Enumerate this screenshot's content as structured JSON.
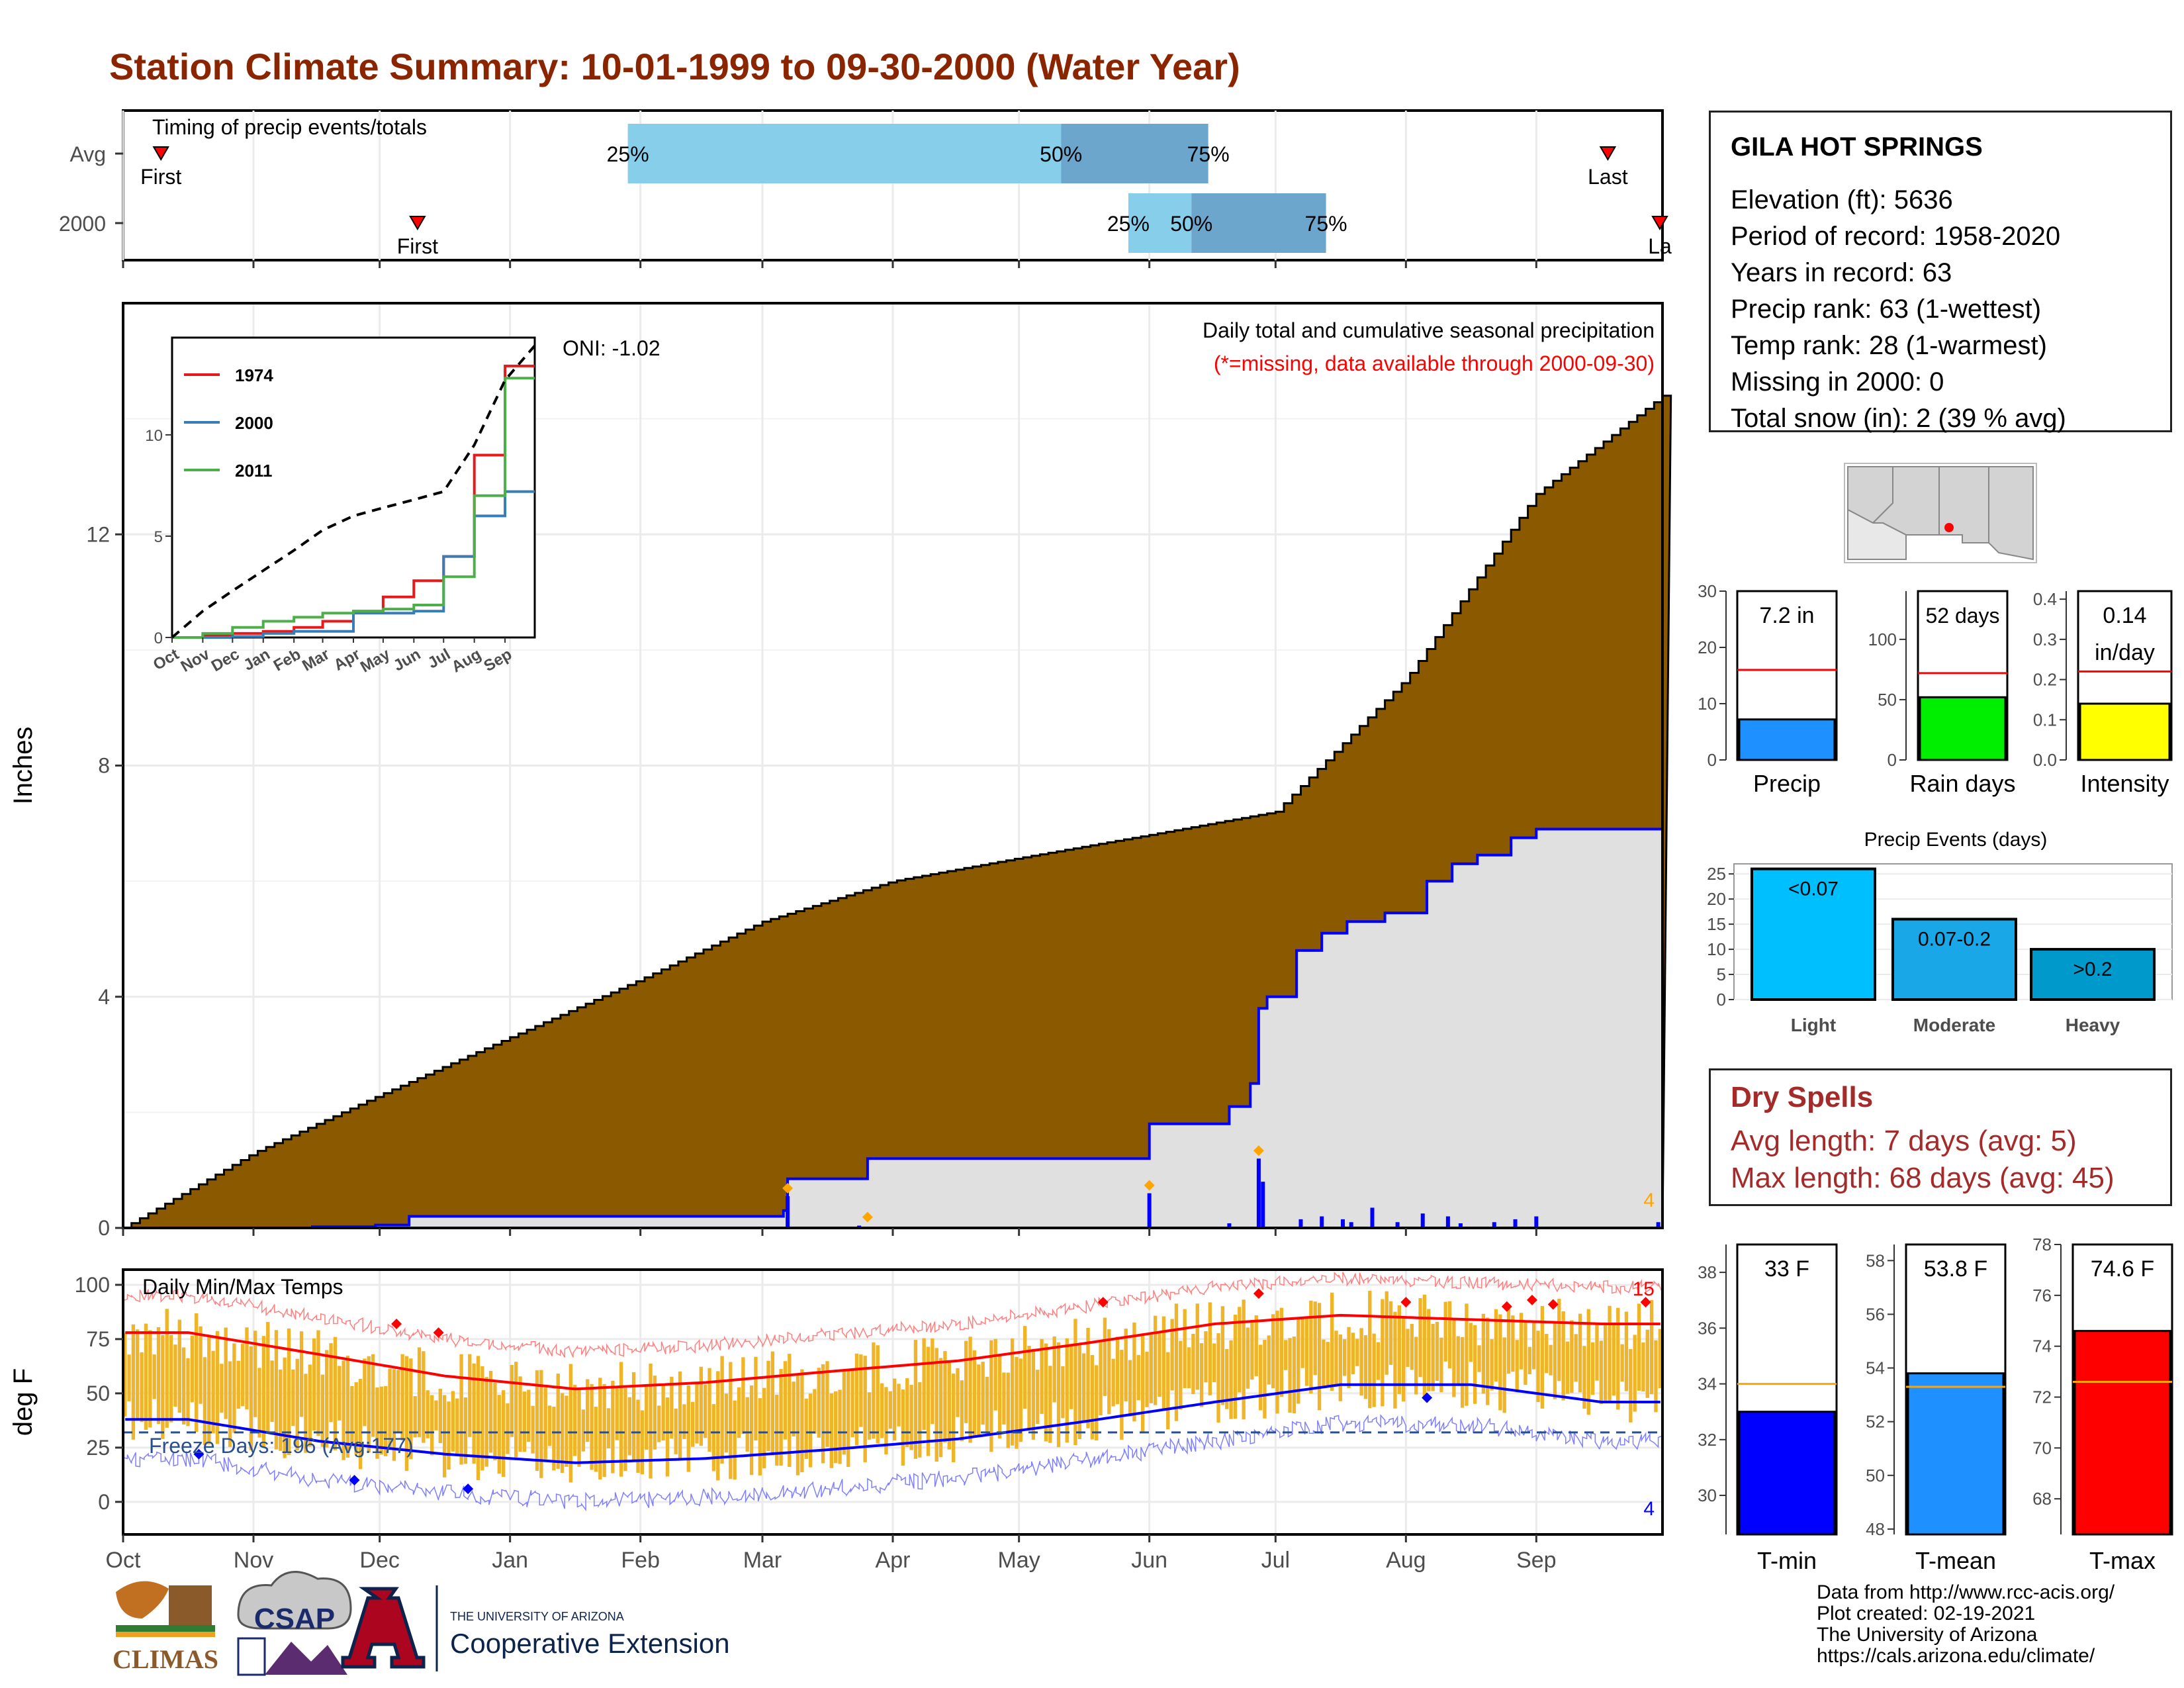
{
  "title": "Station Climate Summary: 10-01-1999 to 09-30-2000 (Water Year)",
  "colors": {
    "title": "#8B2500",
    "cum_avg": "#8B5A00",
    "cum_year": "#0000FF",
    "panel_bg": "#E0E0E0",
    "iqr_light": "#87CEEB",
    "iqr_dark": "#6CA6CD",
    "temp_bar": "#F0B429",
    "tmax_line": "#FF0000",
    "tmin_line": "#0000FF",
    "dry": "#A52A2A"
  },
  "timing": {
    "label": "Timing of precip events/totals",
    "rows": [
      "Avg",
      "2000"
    ],
    "avg": {
      "first_label": "First",
      "last_label": "Last",
      "p25": "25%",
      "p50": "50%",
      "p75": "75%",
      "first_day": 9,
      "p25_day": 120,
      "p50_day": 223,
      "p75_day": 258,
      "last_day": 353
    },
    "year": {
      "first_label": "First",
      "last_label": "La",
      "p25": "25%",
      "p50": "50%",
      "p75": "75%",
      "first_day": 70,
      "p25_day": 239,
      "p50_day": 254,
      "p75_day": 286,
      "last_day": 366
    }
  },
  "precip_panel": {
    "title": "Daily total and cumulative seasonal precipitation",
    "subtitle": "(*=missing, data available through 2000-09-30)",
    "ylabel": "Inches",
    "y_ticks": [
      0,
      4,
      8,
      12
    ],
    "oni": "ONI: -1.02",
    "corner_count": "4",
    "x_months": [
      "Oct",
      "Nov",
      "Dec",
      "Jan",
      "Feb",
      "Mar",
      "Apr",
      "May",
      "Jun",
      "Jul",
      "Aug",
      "Sep"
    ]
  },
  "inset": {
    "legend": [
      "1974",
      "2000",
      "2011"
    ],
    "legend_colors": [
      "#E41A1C",
      "#377EB8",
      "#4DAF4A"
    ],
    "y_ticks": [
      0,
      5,
      10
    ],
    "x_months": [
      "Oct",
      "Nov",
      "Dec",
      "Jan",
      "Feb",
      "Mar",
      "Apr",
      "May",
      "Jun",
      "Jul",
      "Aug",
      "Sep"
    ]
  },
  "temp_panel": {
    "label": "Daily Min/Max Temps",
    "ylabel": "deg F",
    "y_ticks": [
      0,
      25,
      50,
      75,
      100
    ],
    "freeze": "Freeze Days: 196 (Avg:177)",
    "max_count": "15",
    "min_count": "4",
    "x_months": [
      "Oct",
      "Nov",
      "Dec",
      "Jan",
      "Feb",
      "Mar",
      "Apr",
      "May",
      "Jun",
      "Jul",
      "Aug",
      "Sep"
    ]
  },
  "station": {
    "name": "GILA HOT SPRINGS",
    "elevation": "Elevation (ft): 5636",
    "period": "Period of record: 1958-2020",
    "years": "Years in record: 63",
    "precip_rank": "Precip rank: 63 (1-wettest)",
    "temp_rank": "Temp rank: 28 (1-warmest)",
    "missing": "Missing in 2000: 0",
    "snow": "Total snow (in): 2 (39 % avg)"
  },
  "dry_spells": {
    "title": "Dry Spells",
    "avg": "Avg length: 7 days (avg: 5)",
    "max": "Max length: 68 days (avg: 45)"
  },
  "precip_events": {
    "title": "Precip Events (days)",
    "y_ticks": [
      0,
      5,
      10,
      15,
      20,
      25
    ],
    "categories": [
      "Light",
      "Moderate",
      "Heavy"
    ],
    "bar_labels": [
      "<0.07",
      "0.07-0.2",
      ">0.2"
    ],
    "values": [
      26,
      16,
      10
    ]
  },
  "chart_data": [
    {
      "type": "area",
      "title": "Daily total and cumulative seasonal precipitation",
      "ylabel": "Inches",
      "x": [
        "Oct",
        "Nov",
        "Dec",
        "Jan",
        "Feb",
        "Mar",
        "Apr",
        "May",
        "Jun",
        "Jul",
        "Aug",
        "Sep",
        "Sep 30"
      ],
      "series": [
        {
          "name": "Avg",
          "values": [
            0,
            1.3,
            2.3,
            3.3,
            4.3,
            5.3,
            6.0,
            6.4,
            6.8,
            7.2,
            9.5,
            12.7,
            14.4
          ]
        },
        {
          "name": "2000",
          "values": [
            0,
            0,
            0.05,
            0.2,
            0.25,
            0.3,
            1.2,
            1.2,
            1.2,
            3.8,
            5.4,
            6.9,
            7.2
          ]
        }
      ],
      "ylim": [
        0,
        16
      ]
    },
    {
      "type": "bar",
      "title": "",
      "categories": [
        "Precip"
      ],
      "values": [
        7.2
      ],
      "labels": [
        "7.2 in"
      ],
      "avg": 16,
      "ylim": [
        0,
        30
      ],
      "y_ticks": [
        0,
        10,
        20,
        30
      ]
    },
    {
      "type": "bar",
      "title": "",
      "categories": [
        "Rain days"
      ],
      "values": [
        52
      ],
      "labels": [
        "52 days"
      ],
      "avg": 72,
      "ylim": [
        0,
        140
      ],
      "y_ticks": [
        0,
        50,
        100
      ]
    },
    {
      "type": "bar",
      "title": "",
      "categories": [
        "Intensity"
      ],
      "values": [
        0.14
      ],
      "labels": [
        "0.14",
        "in/day"
      ],
      "avg": 0.22,
      "ylim": [
        0,
        0.42
      ],
      "y_ticks": [
        0.0,
        0.1,
        0.2,
        0.3,
        0.4
      ]
    },
    {
      "type": "bar",
      "title": "Precip Events (days)",
      "categories": [
        "Light",
        "Moderate",
        "Heavy"
      ],
      "values": [
        26,
        16,
        10
      ],
      "ylim": [
        0,
        27
      ]
    },
    {
      "type": "bar",
      "title": "",
      "categories": [
        "T-min"
      ],
      "values": [
        33
      ],
      "labels": [
        "33 F"
      ],
      "avg": 34,
      "ylim": [
        28.6,
        39
      ],
      "y_ticks": [
        30,
        32,
        34,
        36,
        38
      ]
    },
    {
      "type": "bar",
      "title": "",
      "categories": [
        "T-mean"
      ],
      "values": [
        53.8
      ],
      "labels": [
        "53.8 F"
      ],
      "avg": 53.3,
      "ylim": [
        47.8,
        58.6
      ],
      "y_ticks": [
        48,
        50,
        52,
        54,
        56,
        58
      ]
    },
    {
      "type": "bar",
      "title": "",
      "categories": [
        "T-max"
      ],
      "values": [
        74.6
      ],
      "labels": [
        "74.6 F"
      ],
      "avg": 72.6,
      "ylim": [
        66.6,
        78
      ],
      "y_ticks": [
        68,
        70,
        72,
        74,
        76,
        78
      ]
    },
    {
      "type": "line",
      "title": "",
      "x": [
        "Oct",
        "Nov",
        "Dec",
        "Jan",
        "Feb",
        "Mar",
        "Apr",
        "May",
        "Jun",
        "Jul",
        "Aug",
        "Sep"
      ],
      "series": [
        {
          "name": "1974",
          "values": [
            0,
            0.1,
            0.2,
            0.3,
            0.5,
            0.8,
            1.3,
            2.0,
            2.8,
            4.0,
            9.0,
            13.4
          ]
        },
        {
          "name": "2000",
          "values": [
            0,
            0,
            0.05,
            0.2,
            0.3,
            0.3,
            1.2,
            1.2,
            1.3,
            4.0,
            6.0,
            7.2
          ]
        },
        {
          "name": "2011",
          "values": [
            0,
            0.2,
            0.5,
            0.8,
            1.0,
            1.2,
            1.3,
            1.4,
            1.6,
            3.0,
            7.0,
            12.8
          ]
        }
      ],
      "ylim": [
        0,
        14
      ]
    },
    {
      "type": "line",
      "title": "Daily Min/Max Temps",
      "ylabel": "deg F",
      "x": [
        "Oct",
        "Nov",
        "Dec",
        "Jan",
        "Feb",
        "Mar",
        "Apr",
        "May",
        "Jun",
        "Jul",
        "Aug",
        "Sep"
      ],
      "series": [
        {
          "name": "Tmax avg",
          "values": [
            78,
            68,
            58,
            52,
            55,
            60,
            65,
            73,
            82,
            86,
            84,
            82
          ]
        },
        {
          "name": "Tmin avg",
          "values": [
            38,
            28,
            22,
            18,
            20,
            24,
            29,
            37,
            46,
            54,
            54,
            46
          ]
        }
      ],
      "ylim": [
        -15,
        107
      ]
    }
  ]
}
